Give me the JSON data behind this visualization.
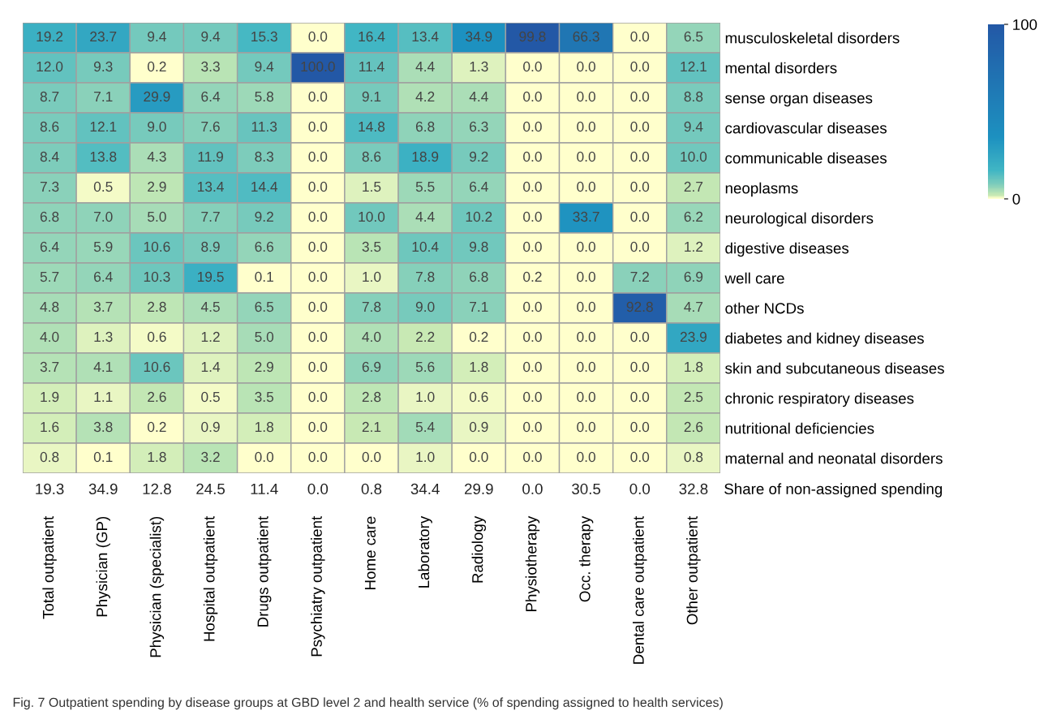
{
  "chart_data": [
    {
      "type": "heatmap",
      "categories": [
        "Total outpatient",
        "Physician (GP)",
        "Physician (specialist)",
        "Hospital outpatient",
        "Drugs outpatient",
        "Psychiatry outpatient",
        "Home care",
        "Laboratory",
        "Radiology",
        "Physiotherapy",
        "Occ. therapy",
        "Dental care outpatient",
        "Other outpatient"
      ],
      "y_categories": [
        "musculoskeletal disorders",
        "mental disorders",
        "sense organ diseases",
        "cardiovascular diseases",
        "communicable diseases",
        "neoplasms",
        "neurological disorders",
        "digestive diseases",
        "well care",
        "other NCDs",
        "diabetes and kidney diseases",
        "skin and subcutaneous diseases",
        "chronic respiratory diseases",
        "nutritional deficiencies",
        "maternal and neonatal disorders"
      ],
      "cells": [
        [
          19.2,
          23.7,
          9.4,
          9.4,
          15.3,
          0.0,
          16.4,
          13.4,
          34.9,
          99.8,
          66.3,
          0.0,
          6.5
        ],
        [
          12.0,
          9.3,
          0.2,
          3.3,
          9.4,
          100.0,
          11.4,
          4.4,
          1.3,
          0.0,
          0.0,
          0.0,
          12.1
        ],
        [
          8.7,
          7.1,
          29.9,
          6.4,
          5.8,
          0.0,
          9.1,
          4.2,
          4.4,
          0.0,
          0.0,
          0.0,
          8.8
        ],
        [
          8.6,
          12.1,
          9.0,
          7.6,
          11.3,
          0.0,
          14.8,
          6.8,
          6.3,
          0.0,
          0.0,
          0.0,
          9.4
        ],
        [
          8.4,
          13.8,
          4.3,
          11.9,
          8.3,
          0.0,
          8.6,
          18.9,
          9.2,
          0.0,
          0.0,
          0.0,
          10.0
        ],
        [
          7.3,
          0.5,
          2.9,
          13.4,
          14.4,
          0.0,
          1.5,
          5.5,
          6.4,
          0.0,
          0.0,
          0.0,
          2.7
        ],
        [
          6.8,
          7.0,
          5.0,
          7.7,
          9.2,
          0.0,
          10.0,
          4.4,
          10.2,
          0.0,
          33.7,
          0.0,
          6.2
        ],
        [
          6.4,
          5.9,
          10.6,
          8.9,
          6.6,
          0.0,
          3.5,
          10.4,
          9.8,
          0.0,
          0.0,
          0.0,
          1.2
        ],
        [
          5.7,
          6.4,
          10.3,
          19.5,
          0.1,
          0.0,
          1.0,
          7.8,
          6.8,
          0.2,
          0.0,
          7.2,
          6.9
        ],
        [
          4.8,
          3.7,
          2.8,
          4.5,
          6.5,
          0.0,
          7.8,
          9.0,
          7.1,
          0.0,
          0.0,
          92.8,
          4.7
        ],
        [
          4.0,
          1.3,
          0.6,
          1.2,
          5.0,
          0.0,
          4.0,
          2.2,
          0.2,
          0.0,
          0.0,
          0.0,
          23.9
        ],
        [
          3.7,
          4.1,
          10.6,
          1.4,
          2.9,
          0.0,
          6.9,
          5.6,
          1.8,
          0.0,
          0.0,
          0.0,
          1.8
        ],
        [
          1.9,
          1.1,
          2.6,
          0.5,
          3.5,
          0.0,
          2.8,
          1.0,
          0.6,
          0.0,
          0.0,
          0.0,
          2.5
        ],
        [
          1.6,
          3.8,
          0.2,
          0.9,
          1.8,
          0.0,
          2.1,
          5.4,
          0.9,
          0.0,
          0.0,
          0.0,
          2.6
        ],
        [
          0.8,
          0.1,
          1.8,
          3.2,
          0.0,
          0.0,
          0.0,
          1.0,
          0.0,
          0.0,
          0.0,
          0.0,
          0.8
        ]
      ],
      "cell_labels": [
        [
          "19.2",
          "23.7",
          "9.4",
          "9.4",
          "15.3",
          "0.0",
          "16.4",
          "13.4",
          "34.9",
          "99.8",
          "66.3",
          "0.0",
          "6.5"
        ],
        [
          "12.0",
          "9.3",
          "0.2",
          "3.3",
          "9.4",
          "100.0",
          "11.4",
          "4.4",
          "1.3",
          "0.0",
          "0.0",
          "0.0",
          "12.1"
        ],
        [
          "8.7",
          "7.1",
          "29.9",
          "6.4",
          "5.8",
          "0.0",
          "9.1",
          "4.2",
          "4.4",
          "0.0",
          "0.0",
          "0.0",
          "8.8"
        ],
        [
          "8.6",
          "12.1",
          "9.0",
          "7.6",
          "11.3",
          "0.0",
          "14.8",
          "6.8",
          "6.3",
          "0.0",
          "0.0",
          "0.0",
          "9.4"
        ],
        [
          "8.4",
          "13.8",
          "4.3",
          "11.9",
          "8.3",
          "0.0",
          "8.6",
          "18.9",
          "9.2",
          "0.0",
          "0.0",
          "0.0",
          "10.0"
        ],
        [
          "7.3",
          "0.5",
          "2.9",
          "13.4",
          "14.4",
          "0.0",
          "1.5",
          "5.5",
          "6.4",
          "0.0",
          "0.0",
          "0.0",
          "2.7"
        ],
        [
          "6.8",
          "7.0",
          "5.0",
          "7.7",
          "9.2",
          "0.0",
          "10.0",
          "4.4",
          "10.2",
          "0.0",
          "33.7",
          "0.0",
          "6.2"
        ],
        [
          "6.4",
          "5.9",
          "10.6",
          "8.9",
          "6.6",
          "0.0",
          "3.5",
          "10.4",
          "9.8",
          "0.0",
          "0.0",
          "0.0",
          "1.2"
        ],
        [
          "5.7",
          "6.4",
          "10.3",
          "19.5",
          "0.1",
          "0.0",
          "1.0",
          "7.8",
          "6.8",
          "0.2",
          "0.0",
          "7.2",
          "6.9"
        ],
        [
          "4.8",
          "3.7",
          "2.8",
          "4.5",
          "6.5",
          "0.0",
          "7.8",
          "9.0",
          "7.1",
          "0.0",
          "0.0",
          "92.8",
          "4.7"
        ],
        [
          "4.0",
          "1.3",
          "0.6",
          "1.2",
          "5.0",
          "0.0",
          "4.0",
          "2.2",
          "0.2",
          "0.0",
          "0.0",
          "0.0",
          "23.9"
        ],
        [
          "3.7",
          "4.1",
          "10.6",
          "1.4",
          "2.9",
          "0.0",
          "6.9",
          "5.6",
          "1.8",
          "0.0",
          "0.0",
          "0.0",
          "1.8"
        ],
        [
          "1.9",
          "1.1",
          "2.6",
          "0.5",
          "3.5",
          "0.0",
          "2.8",
          "1.0",
          "0.6",
          "0.0",
          "0.0",
          "0.0",
          "2.5"
        ],
        [
          "1.6",
          "3.8",
          "0.2",
          "0.9",
          "1.8",
          "0.0",
          "2.1",
          "5.4",
          "0.9",
          "0.0",
          "0.0",
          "0.0",
          "2.6"
        ],
        [
          "0.8",
          "0.1",
          "1.8",
          "3.2",
          "0.0",
          "0.0",
          "0.0",
          "1.0",
          "0.0",
          "0.0",
          "0.0",
          "0.0",
          "0.8"
        ]
      ],
      "clim": [
        0,
        100
      ],
      "cticks": [
        0,
        100
      ]
    },
    {
      "type": "other",
      "categories": [
        null,
        null,
        null,
        null,
        null,
        null,
        null,
        null,
        null,
        null,
        null,
        null,
        null
      ],
      "y2label": "Share of non-assigned spending",
      "value_labels": [
        "19.3",
        "34.9",
        "12.8",
        "24.5",
        "11.4",
        "0.0",
        "0.8",
        "34.4",
        "29.9",
        "0.0",
        "30.5",
        "0.0",
        "32.8"
      ],
      "annotations": [
        "Fig. 7 Outpatient spending by disease groups at GBD level 2 and health service (% of spending assigned to health services)"
      ]
    }
  ]
}
